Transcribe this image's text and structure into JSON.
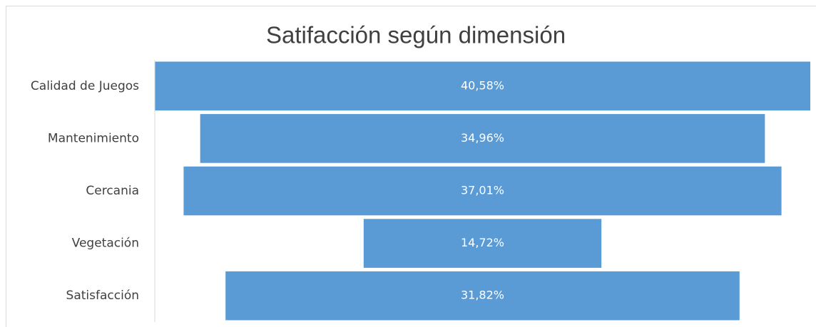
{
  "chart_data": {
    "type": "funnel",
    "title": "Satifacción según dimensión",
    "categories": [
      "Calidad de Juegos",
      "Mantenimiento",
      "Cercania",
      "Vegetación",
      "Satisfacción"
    ],
    "values": [
      40.58,
      34.96,
      37.01,
      14.72,
      31.82
    ],
    "value_labels": [
      "40,58%",
      "34,96%",
      "37,01%",
      "14,72%",
      "31,82%"
    ],
    "color": "#5b9bd5"
  }
}
